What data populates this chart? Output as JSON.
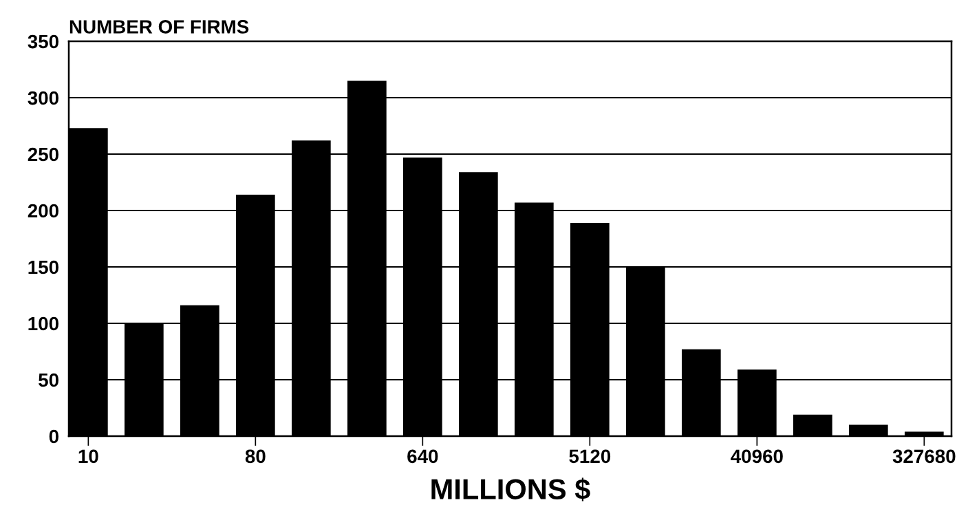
{
  "chart_data": {
    "type": "bar",
    "ylabel": "NUMBER OF FIRMS",
    "xlabel": "MILLIONS $",
    "categories": [
      "10",
      null,
      null,
      "80",
      null,
      null,
      "640",
      null,
      null,
      "5120",
      null,
      null,
      "40960",
      null,
      null,
      "327680"
    ],
    "values": [
      273,
      100,
      116,
      214,
      262,
      315,
      247,
      234,
      207,
      189,
      150,
      77,
      59,
      19,
      10,
      4
    ],
    "color": "#000000",
    "ylim": [
      0,
      350
    ],
    "yticks": [
      0,
      50,
      100,
      150,
      200,
      250,
      300,
      350
    ],
    "grid": "y"
  }
}
